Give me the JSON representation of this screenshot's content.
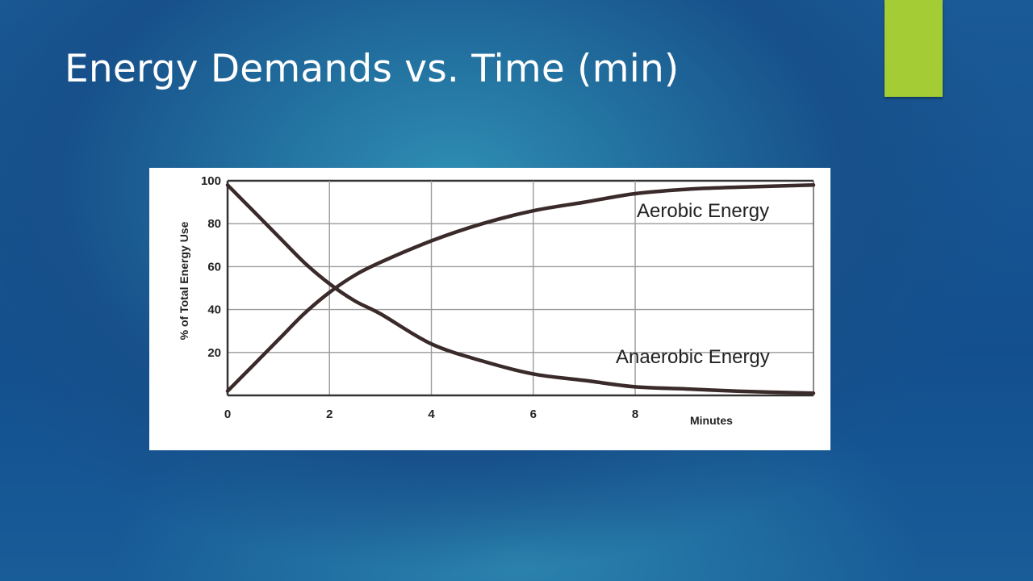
{
  "slide": {
    "title": "Energy Demands vs. Time (min)",
    "accent_color": "#a3cc35"
  },
  "chart_data": {
    "type": "line",
    "title": "",
    "xlabel": "Minutes",
    "ylabel": "% of Total Energy Use",
    "xlim": [
      0,
      11.5
    ],
    "ylim": [
      0,
      100
    ],
    "x_ticks": [
      "0",
      "2",
      "4",
      "6",
      "8"
    ],
    "y_ticks": [
      "20",
      "40",
      "60",
      "80",
      "100"
    ],
    "grid": true,
    "series": [
      {
        "name": "Aerobic Energy",
        "x": [
          0,
          0.5,
          1,
          1.5,
          2,
          2.5,
          3,
          4,
          5,
          6,
          7,
          8,
          9,
          10,
          11.5
        ],
        "y": [
          2,
          14,
          26,
          38,
          48,
          56,
          62,
          72,
          80,
          86,
          90,
          94,
          96,
          97,
          98
        ]
      },
      {
        "name": "Anaerobic Energy",
        "x": [
          0,
          0.5,
          1,
          1.5,
          2,
          2.5,
          3,
          4,
          5,
          6,
          7,
          8,
          9,
          10,
          11.5
        ],
        "y": [
          98,
          86,
          74,
          62,
          52,
          44,
          38,
          24,
          16,
          10,
          7,
          4,
          3,
          2,
          1
        ]
      }
    ]
  }
}
